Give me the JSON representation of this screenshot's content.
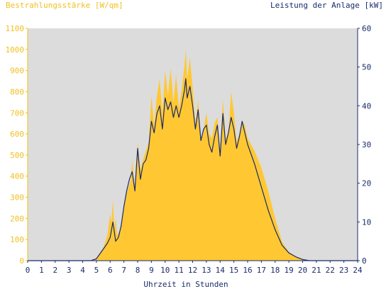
{
  "chart_data": {
    "type": "area",
    "xlabel": "Uhrzeit in Stunden",
    "xlim": [
      0,
      24
    ],
    "xticks": [
      0,
      1,
      2,
      3,
      4,
      5,
      6,
      7,
      8,
      9,
      10,
      11,
      12,
      13,
      14,
      15,
      16,
      17,
      18,
      19,
      20,
      21,
      22,
      23,
      24
    ],
    "left_axis": {
      "label": "Bestrahlungsstärke [W/qm]",
      "ylim": [
        0,
        1100
      ],
      "ticks": [
        0,
        100,
        200,
        300,
        400,
        500,
        600,
        700,
        800,
        900,
        1000,
        1100
      ],
      "color": "#f0c020"
    },
    "right_axis": {
      "label": "Leistung der Anlage [kW]",
      "ylim": [
        0,
        60
      ],
      "ticks": [
        0,
        10,
        20,
        30,
        40,
        50,
        60
      ],
      "color": "#1a2a6c"
    },
    "grid": false,
    "background_color": "#dcdcdc",
    "series": [
      {
        "axis": "left",
        "style": "area",
        "color": "#ffc832",
        "x": [
          0,
          4.6,
          5.0,
          5.5,
          5.8,
          6.0,
          6.1,
          6.2,
          6.3,
          6.4,
          6.5,
          6.7,
          7.0,
          7.2,
          7.4,
          7.5,
          7.6,
          7.8,
          8.0,
          8.2,
          8.4,
          8.6,
          8.8,
          9.0,
          9.2,
          9.4,
          9.6,
          9.8,
          10.0,
          10.2,
          10.4,
          10.6,
          10.8,
          11.0,
          11.2,
          11.4,
          11.5,
          11.6,
          11.8,
          12.0,
          12.2,
          12.4,
          12.6,
          12.8,
          13.0,
          13.2,
          13.4,
          13.6,
          13.8,
          14.0,
          14.2,
          14.4,
          14.6,
          14.8,
          15.0,
          15.2,
          15.4,
          15.6,
          15.8,
          16.0,
          16.5,
          17.0,
          17.5,
          18.0,
          18.5,
          19.0,
          19.5,
          20.0,
          20.5,
          24
        ],
        "values": [
          0,
          0,
          10,
          60,
          120,
          220,
          180,
          290,
          150,
          200,
          120,
          140,
          250,
          320,
          360,
          380,
          470,
          350,
          560,
          430,
          480,
          520,
          560,
          780,
          640,
          780,
          860,
          700,
          900,
          780,
          910,
          750,
          880,
          720,
          810,
          920,
          1000,
          860,
          960,
          820,
          640,
          760,
          560,
          620,
          700,
          600,
          580,
          650,
          680,
          520,
          760,
          580,
          600,
          800,
          700,
          560,
          600,
          660,
          640,
          580,
          520,
          440,
          330,
          200,
          90,
          40,
          20,
          8,
          0,
          0
        ]
      },
      {
        "axis": "right",
        "style": "line",
        "color": "#1a2a6c",
        "x": [
          0,
          4.6,
          5.0,
          5.5,
          5.8,
          6.0,
          6.1,
          6.2,
          6.4,
          6.6,
          6.8,
          7.0,
          7.2,
          7.4,
          7.6,
          7.8,
          8.0,
          8.2,
          8.4,
          8.6,
          8.8,
          9.0,
          9.2,
          9.4,
          9.6,
          9.8,
          10.0,
          10.2,
          10.4,
          10.6,
          10.8,
          11.0,
          11.2,
          11.4,
          11.5,
          11.6,
          11.8,
          12.0,
          12.2,
          12.4,
          12.6,
          12.8,
          13.0,
          13.2,
          13.4,
          13.6,
          13.8,
          14.0,
          14.2,
          14.4,
          14.6,
          14.8,
          15.0,
          15.2,
          15.4,
          15.6,
          15.8,
          16.0,
          16.5,
          17.0,
          17.5,
          18.0,
          18.5,
          19.0,
          19.5,
          20.0,
          20.5,
          24
        ],
        "values": [
          0,
          0,
          0.5,
          3,
          4.5,
          6,
          8,
          10,
          5,
          6,
          9,
          14,
          18,
          21,
          23,
          18,
          29,
          21,
          25,
          26,
          29,
          36,
          33,
          38,
          40,
          34,
          42,
          39,
          41,
          37,
          40,
          37,
          40,
          44,
          47,
          42,
          45,
          40,
          34,
          39,
          31,
          34,
          35,
          30,
          28,
          32,
          35,
          27,
          38,
          30,
          33,
          37,
          34,
          29,
          32,
          36,
          33,
          30,
          25,
          19,
          13,
          8,
          4,
          2,
          1,
          0.3,
          0,
          0
        ]
      }
    ]
  }
}
